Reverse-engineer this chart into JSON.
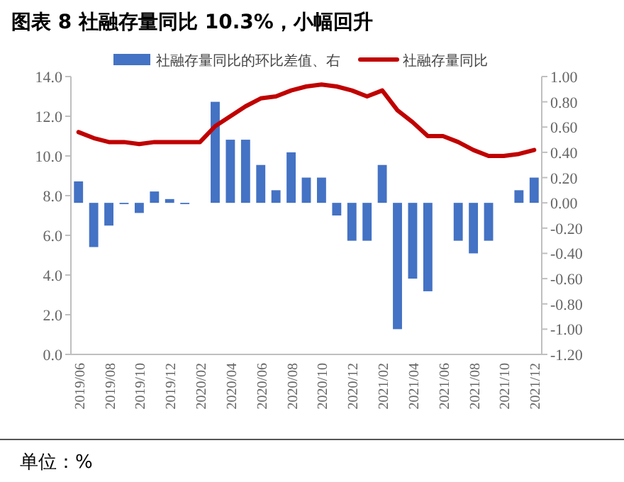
{
  "chart_data": {
    "type": "bar",
    "title": "图表 8  社融存量同比 10.3%，小幅回升",
    "categories": [
      "2019/06",
      null,
      "2019/08",
      null,
      "2019/10",
      null,
      "2019/12",
      null,
      "2020/02",
      null,
      "2020/04",
      null,
      "2020/06",
      null,
      "2020/08",
      null,
      "2020/10",
      null,
      "2020/12",
      null,
      "2021/02",
      null,
      "2021/04",
      null,
      "2021/06",
      null,
      "2021/08",
      null,
      "2021/10",
      null,
      "2021/12"
    ],
    "series": [
      {
        "name": "社融存量同比的环比差值、右",
        "axis": "y2",
        "color": "#4472c4",
        "values": [
          0.17,
          -0.35,
          -0.18,
          -0.01,
          -0.08,
          0.09,
          0.03,
          -0.01,
          0,
          0.8,
          0.5,
          0.5,
          0.3,
          0.1,
          0.4,
          0.2,
          0.2,
          -0.1,
          -0.3,
          -0.3,
          0.3,
          -1.0,
          -0.6,
          -0.7,
          0,
          -0.3,
          -0.4,
          -0.3,
          0,
          0.1,
          0.2
        ]
      },
      {
        "name": "社融存量同比",
        "type": "line",
        "color": "#c00000",
        "values": [
          11.2,
          10.9,
          10.7,
          10.7,
          10.6,
          10.7,
          10.7,
          10.7,
          10.7,
          11.5,
          12.0,
          12.5,
          12.9,
          13.0,
          13.3,
          13.5,
          13.6,
          13.5,
          13.3,
          13.0,
          13.3,
          12.3,
          11.7,
          11.0,
          11.0,
          10.7,
          10.3,
          10.0,
          10.0,
          10.1,
          10.3
        ]
      }
    ],
    "ylim": [
      0,
      14
    ],
    "yticks": [
      {
        "value": 0,
        "label": "0.0"
      },
      {
        "value": 2,
        "label": "2.0"
      },
      {
        "value": 4,
        "label": "4.0"
      },
      {
        "value": 6,
        "label": "6.0"
      },
      {
        "value": 8,
        "label": "8.0"
      },
      {
        "value": 10,
        "label": "10.0"
      },
      {
        "value": 12,
        "label": "12.0"
      },
      {
        "value": 14,
        "label": "14.0"
      }
    ],
    "y2lim": [
      -1.2,
      1.0
    ],
    "y2ticks": [
      {
        "value": -1.2,
        "label": "-1.20"
      },
      {
        "value": -1.0,
        "label": "-1.00"
      },
      {
        "value": -0.8,
        "label": "-0.80"
      },
      {
        "value": -0.6,
        "label": "-0.60"
      },
      {
        "value": -0.4,
        "label": "-0.40"
      },
      {
        "value": -0.2,
        "label": "-0.20"
      },
      {
        "value": 0,
        "label": "0.00"
      },
      {
        "value": 0.2,
        "label": "0.20"
      },
      {
        "value": 0.4,
        "label": "0.40"
      },
      {
        "value": 0.6,
        "label": "0.60"
      },
      {
        "value": 0.8,
        "label": "0.80"
      },
      {
        "value": 1.0,
        "label": "1.00"
      }
    ],
    "legend": "top",
    "grid": false,
    "annotations": [
      "单位：%"
    ]
  }
}
